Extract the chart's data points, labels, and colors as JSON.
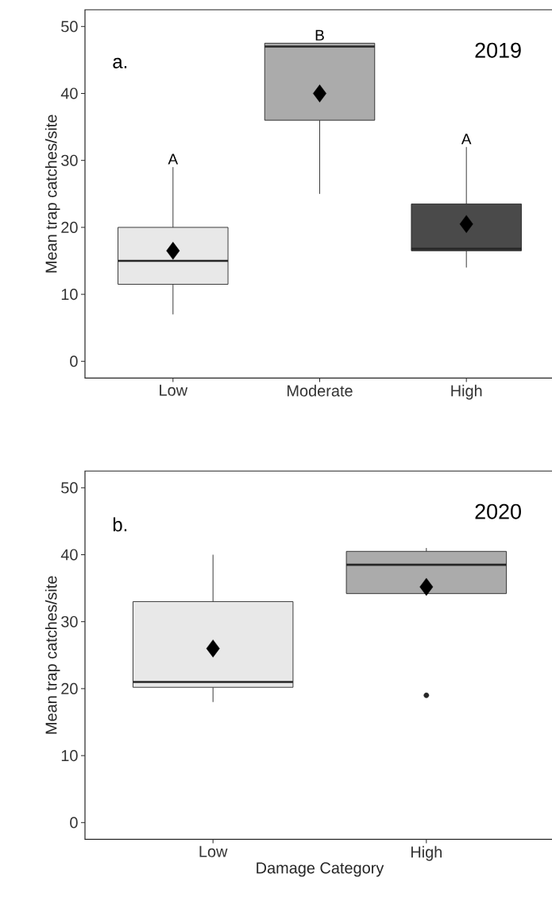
{
  "chart_data": [
    {
      "type": "box",
      "categories": [
        "Low",
        "Moderate",
        "High"
      ],
      "colors": [
        "#e8e8e8",
        "#ababab",
        "#4a4a4a"
      ],
      "ylabel": "Mean trap catches/site",
      "ylim": [
        -2.5,
        52.5
      ],
      "yticks": [
        0,
        10,
        20,
        30,
        40,
        50
      ],
      "boxes": [
        {
          "low": 7,
          "q1": 11.5,
          "median": 15,
          "q3": 20,
          "high": 29,
          "mean": 16.5
        },
        {
          "low": 25,
          "q1": 36,
          "median": 47,
          "q3": 47.5,
          "high": 47.5,
          "mean": 40
        },
        {
          "low": 14,
          "q1": 16.5,
          "median": 16.8,
          "q3": 23.5,
          "high": 32,
          "mean": 20.5
        }
      ],
      "annotations": [
        "a.",
        "2019",
        "A",
        "B",
        "A"
      ]
    },
    {
      "type": "box",
      "categories": [
        "Low",
        "High"
      ],
      "colors": [
        "#e8e8e8",
        "#ababab"
      ],
      "xlabel": "Damage Category",
      "ylabel": "Mean trap catches/site",
      "ylim": [
        -2.5,
        52.5
      ],
      "yticks": [
        0,
        10,
        20,
        30,
        40,
        50
      ],
      "boxes": [
        {
          "low": 18,
          "q1": 20.2,
          "median": 21,
          "q3": 33,
          "high": 40,
          "mean": 26
        },
        {
          "low": 34.2,
          "q1": 34.2,
          "median": 38.5,
          "q3": 40.5,
          "high": 41,
          "mean": 35.2,
          "outliers": [
            19
          ]
        }
      ],
      "annotations": [
        "b.",
        "2020"
      ]
    }
  ]
}
